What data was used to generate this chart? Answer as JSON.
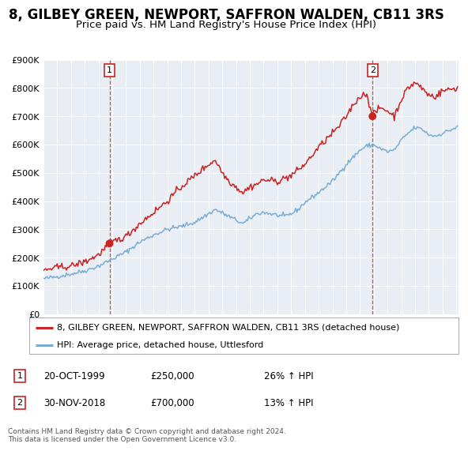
{
  "title": "8, GILBEY GREEN, NEWPORT, SAFFRON WALDEN, CB11 3RS",
  "subtitle": "Price paid vs. HM Land Registry's House Price Index (HPI)",
  "ylim": [
    0,
    900000
  ],
  "yticks": [
    0,
    100000,
    200000,
    300000,
    400000,
    500000,
    600000,
    700000,
    800000,
    900000
  ],
  "ytick_labels": [
    "£0",
    "£100K",
    "£200K",
    "£300K",
    "£400K",
    "£500K",
    "£600K",
    "£700K",
    "£800K",
    "£900K"
  ],
  "sale1_price": 250000,
  "sale2_price": 700000,
  "red_color": "#cc2222",
  "blue_color": "#7aadd4",
  "bg_color": "#ffffff",
  "plot_bg_color": "#e8eef4",
  "grid_color": "#ffffff",
  "legend_line1": "8, GILBEY GREEN, NEWPORT, SAFFRON WALDEN, CB11 3RS (detached house)",
  "legend_line2": "HPI: Average price, detached house, Uttlesford",
  "footnote": "Contains HM Land Registry data © Crown copyright and database right 2024.\nThis data is licensed under the Open Government Licence v3.0.",
  "title_fontsize": 12,
  "subtitle_fontsize": 9.5
}
